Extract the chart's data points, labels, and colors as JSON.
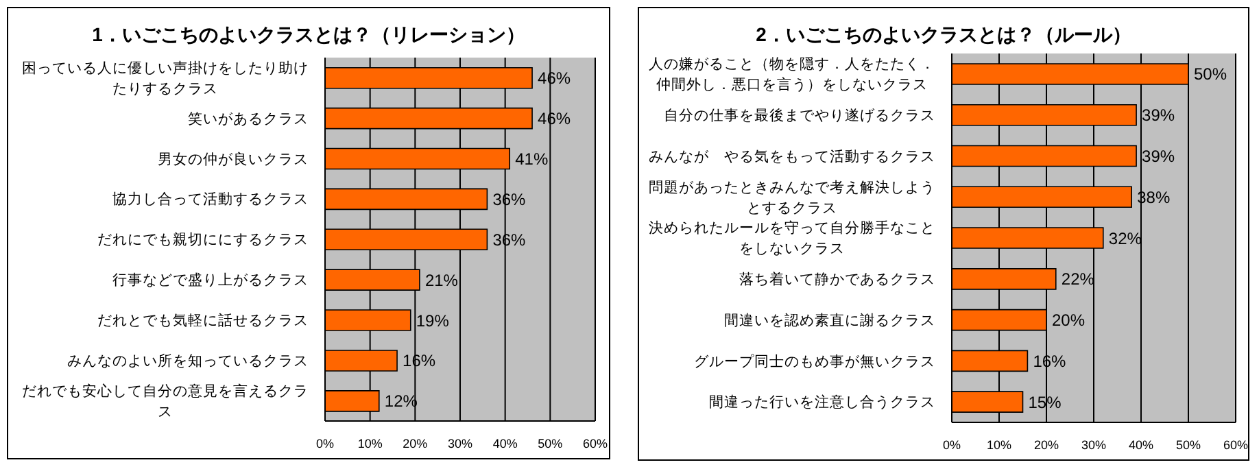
{
  "chart_data": [
    {
      "type": "bar",
      "orientation": "horizontal",
      "title": "1．いごこちのよいクラスとは？（リレーション）",
      "categories": [
        "困っている人に優しい声掛けをしたり助けたりするクラス",
        "笑いがあるクラス",
        "男女の仲が良いクラス",
        "協力し合って活動するクラス",
        "だれにでも親切ににするクラス",
        "行事などで盛り上がるクラス",
        "だれとでも気軽に話せるクラス",
        "みんなのよい所を知っているクラス",
        "だれでも安心して自分の意見を言えるクラス"
      ],
      "values": [
        46,
        46,
        41,
        36,
        36,
        21,
        19,
        16,
        12
      ],
      "value_labels": [
        "46%",
        "46%",
        "41%",
        "36%",
        "36%",
        "21%",
        "19%",
        "16%",
        "12%"
      ],
      "color": "#ff6600",
      "xlim": [
        0,
        60
      ],
      "xticks": [
        {
          "value": 0,
          "label": "0%"
        },
        {
          "value": 10,
          "label": "10%"
        },
        {
          "value": 20,
          "label": "20%"
        },
        {
          "value": 30,
          "label": "30%"
        },
        {
          "value": 40,
          "label": "40%"
        },
        {
          "value": 50,
          "label": "50%"
        },
        {
          "value": 60,
          "label": "60%"
        }
      ],
      "grid": "x"
    },
    {
      "type": "bar",
      "orientation": "horizontal",
      "title": "2．いごこちのよいクラスとは？（ルール）",
      "categories": [
        "人の嫌がること（物を隠す．人をたたく．仲間外し．悪口を言う）をしないクラス",
        "自分の仕事を最後までやり遂げるクラス",
        "みんなが　やる気をもって活動するクラス",
        "問題があったときみんなで考え解決しようとするクラス",
        "決められたルールを守って自分勝手なことをしないクラス",
        "落ち着いて静かであるクラス",
        "間違いを認め素直に謝るクラス",
        "グループ同士のもめ事が無いクラス",
        "間違った行いを注意し合うクラス"
      ],
      "values": [
        50,
        39,
        39,
        38,
        32,
        22,
        20,
        16,
        15
      ],
      "value_labels": [
        "50%",
        "39%",
        "39%",
        "38%",
        "32%",
        "22%",
        "20%",
        "16%",
        "15%"
      ],
      "color": "#ff6600",
      "xlim": [
        0,
        60
      ],
      "xticks": [
        {
          "value": 0,
          "label": "0%"
        },
        {
          "value": 10,
          "label": "10%"
        },
        {
          "value": 20,
          "label": "20%"
        },
        {
          "value": 30,
          "label": "30%"
        },
        {
          "value": 40,
          "label": "40%"
        },
        {
          "value": 50,
          "label": "50%"
        },
        {
          "value": 60,
          "label": "60%"
        }
      ],
      "grid": "x"
    }
  ]
}
